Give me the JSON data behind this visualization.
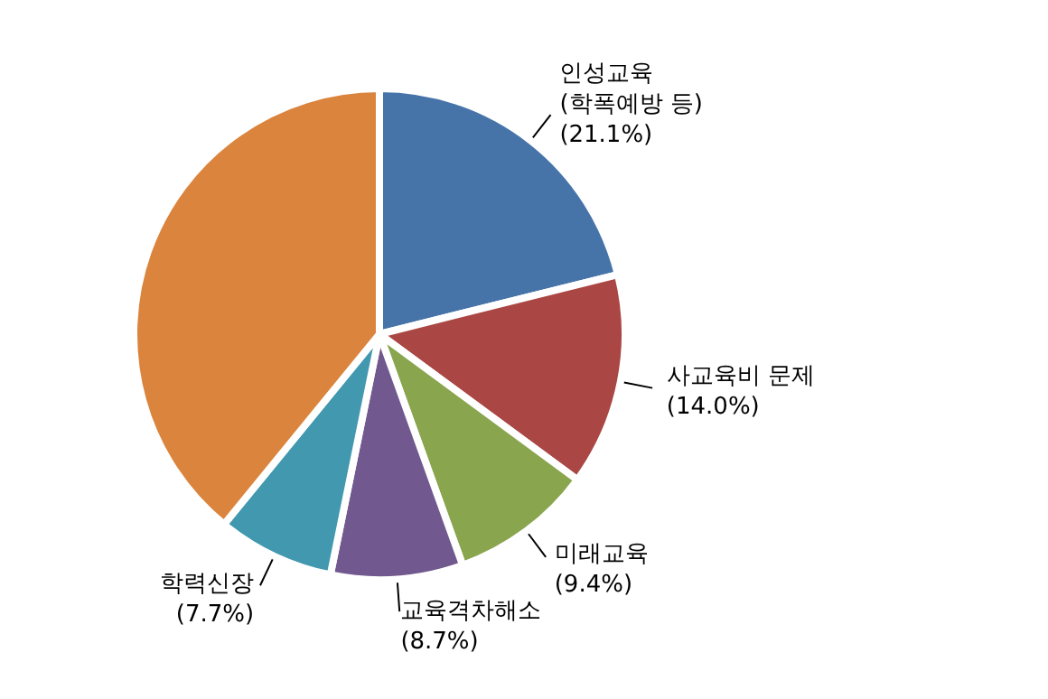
{
  "chart_data": {
    "type": "pie",
    "categories": [
      "인성교육\n(학폭예방 등)",
      "사교육비 문제",
      "미래교육",
      "교육격차해소",
      "학력신장",
      null
    ],
    "values": [
      21.1,
      14.0,
      9.4,
      8.7,
      7.7,
      39.1
    ],
    "value_labels": [
      "(21.1%)",
      "(14.0%)",
      "(9.4%)",
      "(8.7%)",
      "(7.7%)",
      null
    ],
    "colors": [
      "#4674a9",
      "#aa4643",
      "#89a54e",
      "#71588f",
      "#4198af",
      "#db843d"
    ],
    "legend": false
  }
}
